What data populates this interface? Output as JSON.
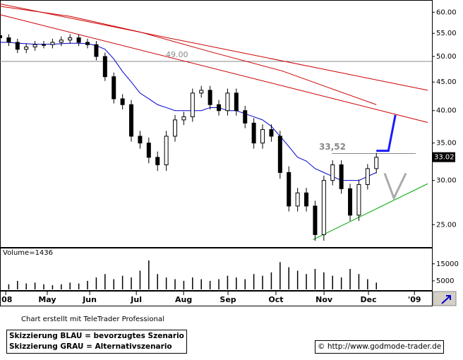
{
  "chart_data": {
    "type": "candlestick",
    "log_scale": true,
    "x": [
      0,
      4,
      8,
      12,
      16,
      20,
      24,
      28,
      32,
      36,
      40,
      44,
      48,
      52,
      56,
      60,
      64,
      68,
      72,
      76,
      80,
      84,
      88,
      92,
      96,
      100,
      104,
      108,
      112,
      116,
      120,
      124,
      128,
      132,
      136,
      140,
      144,
      148,
      152,
      156,
      160,
      164,
      168,
      172
    ],
    "open": [
      54.5,
      54,
      53,
      51.5,
      52,
      52.5,
      52.5,
      53,
      53.5,
      54,
      53,
      52.5,
      50,
      46,
      42,
      41,
      36,
      35,
      33,
      32,
      36,
      38.5,
      39,
      43,
      43.5,
      41,
      40,
      43,
      40,
      38,
      35,
      37,
      36,
      31,
      27,
      28.5,
      27,
      24,
      30,
      32,
      29,
      26,
      29.5,
      31.5
    ],
    "high": [
      55.3,
      54.8,
      53.8,
      52.8,
      53.3,
      53.3,
      53.8,
      54.3,
      54.8,
      54.8,
      53.8,
      53.3,
      50.8,
      46.8,
      42.8,
      41.8,
      36.8,
      35.8,
      33.8,
      36.8,
      39.3,
      39.8,
      43.8,
      44.3,
      44.3,
      41.8,
      43.8,
      43.8,
      40.8,
      38.8,
      37.8,
      37.8,
      36.8,
      31.8,
      29.1,
      29.1,
      27.6,
      30.6,
      32.6,
      32.6,
      29.6,
      30.1,
      32.1,
      33.6
    ],
    "low": [
      53.2,
      52.2,
      50.7,
      50.7,
      51.2,
      51.7,
      51.7,
      52.2,
      52.7,
      52.2,
      51.7,
      49.2,
      45.2,
      41.2,
      40.2,
      35.2,
      34.2,
      32.2,
      31.2,
      31.2,
      35.2,
      37.7,
      38.2,
      42.2,
      40.2,
      39.2,
      39.2,
      39.2,
      37.2,
      34.2,
      34.2,
      35.2,
      30.2,
      26.4,
      26.4,
      26.4,
      23.4,
      23.4,
      29.4,
      28.4,
      25.4,
      25.4,
      28.9,
      30.9
    ],
    "close": [
      54,
      53,
      51.5,
      52,
      52.5,
      52.5,
      53,
      53.5,
      54,
      53,
      52.5,
      50,
      46,
      42,
      41,
      36,
      35,
      33,
      32,
      36,
      38.5,
      39,
      43,
      43.5,
      41,
      40,
      43,
      40,
      38,
      35,
      37,
      36,
      31,
      27,
      28.5,
      27,
      24,
      30,
      32,
      29,
      26,
      29.5,
      31.5,
      33
    ],
    "volume": [
      4000,
      3000,
      5000,
      3500,
      4000,
      3000,
      2500,
      3000,
      4000,
      3500,
      5000,
      7000,
      9000,
      6000,
      8000,
      7000,
      11000,
      17000,
      9000,
      7000,
      6000,
      5000,
      7000,
      6000,
      5000,
      6000,
      8000,
      7000,
      6000,
      9000,
      8000,
      10000,
      16000,
      13000,
      11000,
      9000,
      12000,
      10000,
      8000,
      7000,
      12000,
      9000,
      6000,
      4000
    ],
    "overlays": [
      {
        "color": "#0000cc",
        "x": [
          0,
          4,
          8,
          12,
          16,
          20,
          24,
          28,
          32,
          36,
          40,
          44,
          48,
          52,
          56,
          60,
          64,
          68,
          72,
          76,
          80,
          84,
          88,
          92,
          96,
          100,
          104,
          108,
          112,
          116,
          120,
          124,
          128,
          132,
          136,
          140,
          144,
          148,
          152,
          156,
          160,
          164,
          168,
          172
        ],
        "values": [
          53,
          53,
          52.8,
          52.7,
          52.6,
          52.6,
          52.6,
          52.7,
          52.8,
          52.8,
          52.7,
          52.3,
          51.5,
          49.5,
          47,
          45,
          43,
          42,
          41,
          40.5,
          40,
          40,
          40,
          40,
          40.5,
          40.5,
          40,
          40,
          39.5,
          39,
          38.5,
          37.5,
          36,
          34.5,
          33,
          32.5,
          31.5,
          31,
          30.5,
          30,
          30,
          30,
          30.5,
          31
        ]
      },
      {
        "color": "#cc0000",
        "x": [
          0,
          32,
          64,
          96,
          129,
          150,
          172
        ],
        "values": [
          61.5,
          59,
          55.3,
          51,
          47.1,
          44,
          41
        ]
      },
      {
        "color": "#cc0000",
        "x": [
          0,
          195.5
        ],
        "values": [
          62.1,
          43.5
        ]
      },
      {
        "color": "#cc0000",
        "x": [
          0,
          195.5
        ],
        "values": [
          59.4,
          38.1
        ]
      },
      {
        "color": "#00aa00",
        "x": [
          143,
          195.5
        ],
        "values": [
          23.5,
          29.6
        ]
      },
      {
        "color": "#1a1aff",
        "x": [
          172,
          177.5,
          180.7
        ],
        "values": [
          33.9,
          33.9,
          39.3
        ],
        "width": 3
      },
      {
        "color": "#aaaaaa",
        "x": [
          175.8,
          180,
          185.5
        ],
        "values": [
          30.9,
          27.9,
          30.9
        ],
        "width": 3
      }
    ],
    "hlines": [
      {
        "value": 49,
        "label": "49.00",
        "x": [
          0,
          197.4
        ],
        "color": "#888888"
      },
      {
        "value": 33.52,
        "label": "33,52",
        "x": [
          151.6,
          190
        ],
        "color": "#888888"
      }
    ],
    "last_price": 33.02,
    "xlim": [
      0,
      197.4
    ],
    "ylim": [
      22.8,
      63.1
    ],
    "yticks": [
      {
        "value": 25,
        "label": "25.00"
      },
      {
        "value": 30,
        "label": "30.00"
      },
      {
        "value": 35,
        "label": "35.00"
      },
      {
        "value": 40,
        "label": "40.00"
      },
      {
        "value": 45,
        "label": "45.00"
      },
      {
        "value": 50,
        "label": "50.00"
      },
      {
        "value": 55,
        "label": "55.00"
      },
      {
        "value": 60,
        "label": "60.00"
      }
    ],
    "xticks": [
      {
        "value": 2.6,
        "label": "'08"
      },
      {
        "value": 21.6,
        "label": "May"
      },
      {
        "value": 41,
        "label": "Jun"
      },
      {
        "value": 62.3,
        "label": "Jul"
      },
      {
        "value": 83.9,
        "label": "Aug"
      },
      {
        "value": 104.2,
        "label": "Sep"
      },
      {
        "value": 126.1,
        "label": "Oct"
      },
      {
        "value": 148.1,
        "label": "Nov"
      },
      {
        "value": 168.4,
        "label": "Dec"
      },
      {
        "value": 189.4,
        "label": "'09"
      }
    ],
    "volume_label": "Volume=1436",
    "volume_ylim": [
      0,
      24000
    ],
    "volume_yticks": [
      5000,
      15000
    ]
  },
  "footer": {
    "credit": "Chart erstellt mit TeleTrader Professional",
    "legend": [
      "Skizzierung BLAU = bevorzugtes Szenario",
      "Skizzierung GRAU = Alternativszenario"
    ],
    "copyright": "© http://www.godmode-trader.de"
  }
}
